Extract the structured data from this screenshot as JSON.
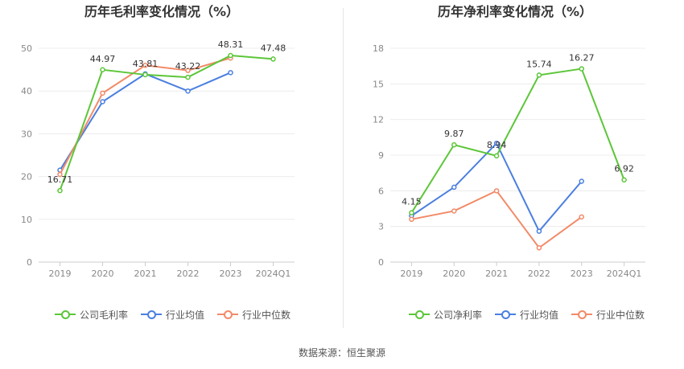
{
  "source_text": "数据来源：恒生聚源",
  "chart_data": [
    {
      "type": "line",
      "title": "历年毛利率变化情况（%）",
      "categories": [
        "2019",
        "2020",
        "2021",
        "2022",
        "2023",
        "2024Q1"
      ],
      "ylim": [
        0,
        50
      ],
      "yticks": [
        "0",
        "10",
        "20",
        "30",
        "40",
        "50"
      ],
      "grid": true,
      "legend_position": "bottom",
      "series": [
        {
          "name": "公司毛利率",
          "color": "#5cc639",
          "values": [
            16.71,
            44.97,
            43.81,
            43.22,
            48.31,
            47.48
          ],
          "labels": [
            "16.71",
            "44.97",
            "43.81",
            "43.22",
            "48.31",
            "47.48"
          ]
        },
        {
          "name": "行业均值",
          "color": "#4a7fe0",
          "values": [
            21.5,
            37.5,
            44.0,
            40.0,
            44.3,
            null
          ]
        },
        {
          "name": "行业中位数",
          "color": "#f28a68",
          "values": [
            20.5,
            39.5,
            46.0,
            44.8,
            47.7,
            null
          ]
        }
      ]
    },
    {
      "type": "line",
      "title": "历年净利率变化情况（%）",
      "categories": [
        "2019",
        "2020",
        "2021",
        "2022",
        "2023",
        "2024Q1"
      ],
      "ylim": [
        0,
        18
      ],
      "yticks": [
        "0",
        "3",
        "6",
        "9",
        "12",
        "15",
        "18"
      ],
      "grid": true,
      "legend_position": "bottom",
      "series": [
        {
          "name": "公司净利率",
          "color": "#5cc639",
          "values": [
            4.15,
            9.87,
            8.94,
            15.74,
            16.27,
            6.92
          ],
          "labels": [
            "4.15",
            "9.87",
            "8.94",
            "15.74",
            "16.27",
            "6.92"
          ]
        },
        {
          "name": "行业均值",
          "color": "#4a7fe0",
          "values": [
            3.9,
            6.3,
            10.0,
            2.6,
            6.8,
            null
          ]
        },
        {
          "name": "行业中位数",
          "color": "#f28a68",
          "values": [
            3.6,
            4.3,
            6.0,
            1.2,
            3.8,
            null
          ]
        }
      ]
    }
  ]
}
